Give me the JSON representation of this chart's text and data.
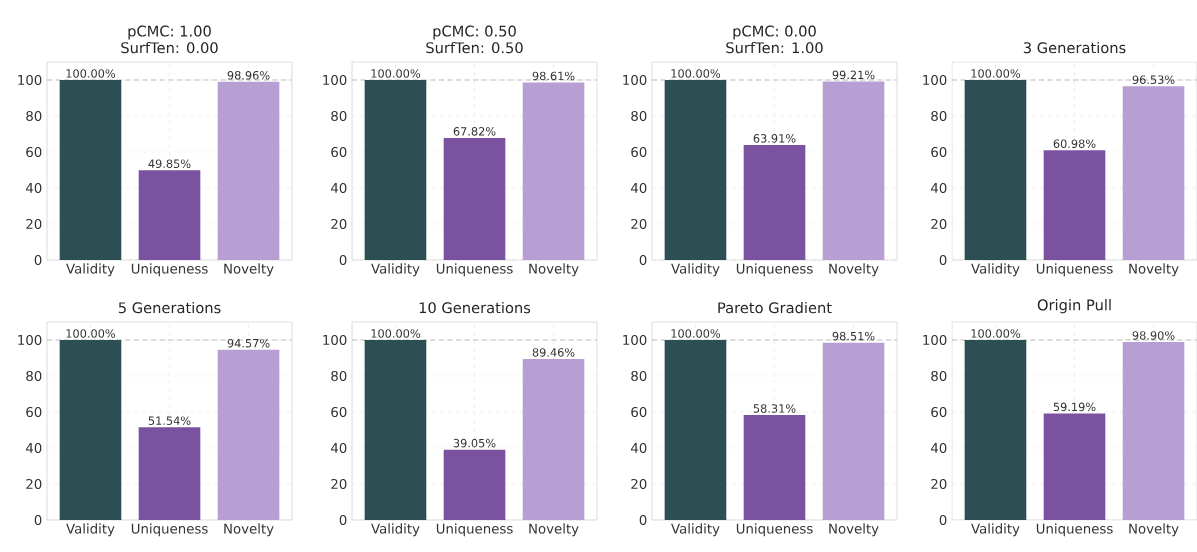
{
  "chart_data": [
    {
      "type": "bar",
      "title": "pCMC: 1.00",
      "subtitle": "SurfTen: 0.00",
      "categories": [
        "Validity",
        "Uniqueness",
        "Novelty"
      ],
      "values": [
        100,
        49.85,
        98.96
      ],
      "colors": [
        "#2d4e52",
        "#7b52a0",
        "#b89fd3"
      ],
      "value_labels": [
        "100.00%",
        "49.85%",
        "98.96%"
      ],
      "ylim": [
        0,
        110
      ],
      "yticks": [
        0,
        20,
        40,
        60,
        80,
        100
      ],
      "grid": true,
      "ref_lines": [
        {
          "axis": "y",
          "value": 100,
          "color": "#c0c0c0",
          "line_style": "dashed"
        }
      ]
    },
    {
      "type": "bar",
      "title": "pCMC: 0.50",
      "subtitle": "SurfTen: 0.50",
      "categories": [
        "Validity",
        "Uniqueness",
        "Novelty"
      ],
      "values": [
        100,
        67.82,
        98.61
      ],
      "colors": [
        "#2d4e52",
        "#7b52a0",
        "#b89fd3"
      ],
      "value_labels": [
        "100.00%",
        "67.82%",
        "98.61%"
      ],
      "ylim": [
        0,
        110
      ],
      "yticks": [
        0,
        20,
        40,
        60,
        80,
        100
      ],
      "grid": true,
      "ref_lines": [
        {
          "axis": "y",
          "value": 100,
          "color": "#c0c0c0",
          "line_style": "dashed"
        }
      ]
    },
    {
      "type": "bar",
      "title": "pCMC: 0.00",
      "subtitle": "SurfTen: 1.00",
      "categories": [
        "Validity",
        "Uniqueness",
        "Novelty"
      ],
      "values": [
        100,
        63.91,
        99.21
      ],
      "colors": [
        "#2d4e52",
        "#7b52a0",
        "#b89fd3"
      ],
      "value_labels": [
        "100.00%",
        "63.91%",
        "99.21%"
      ],
      "ylim": [
        0,
        110
      ],
      "yticks": [
        0,
        20,
        40,
        60,
        80,
        100
      ],
      "grid": true,
      "ref_lines": [
        {
          "axis": "y",
          "value": 100,
          "color": "#c0c0c0",
          "line_style": "dashed"
        }
      ]
    },
    {
      "type": "bar",
      "title": "3 Generations",
      "categories": [
        "Validity",
        "Uniqueness",
        "Novelty"
      ],
      "values": [
        100,
        60.98,
        96.53
      ],
      "colors": [
        "#2d4e52",
        "#7b52a0",
        "#b89fd3"
      ],
      "value_labels": [
        "100.00%",
        "60.98%",
        "96.53%"
      ],
      "ylim": [
        0,
        110
      ],
      "yticks": [
        0,
        20,
        40,
        60,
        80,
        100
      ],
      "grid": true,
      "ref_lines": [
        {
          "axis": "y",
          "value": 100,
          "color": "#c0c0c0",
          "line_style": "dashed"
        }
      ]
    },
    {
      "type": "bar",
      "title": "5 Generations",
      "categories": [
        "Validity",
        "Uniqueness",
        "Novelty"
      ],
      "values": [
        100,
        51.54,
        94.57
      ],
      "colors": [
        "#2d4e52",
        "#7b52a0",
        "#b89fd3"
      ],
      "value_labels": [
        "100.00%",
        "51.54%",
        "94.57%"
      ],
      "ylim": [
        0,
        110
      ],
      "yticks": [
        0,
        20,
        40,
        60,
        80,
        100
      ],
      "grid": true,
      "ref_lines": [
        {
          "axis": "y",
          "value": 100,
          "color": "#c0c0c0",
          "line_style": "dashed"
        }
      ]
    },
    {
      "type": "bar",
      "title": "10 Generations",
      "categories": [
        "Validity",
        "Uniqueness",
        "Novelty"
      ],
      "values": [
        100,
        39.05,
        89.46
      ],
      "colors": [
        "#2d4e52",
        "#7b52a0",
        "#b89fd3"
      ],
      "value_labels": [
        "100.00%",
        "39.05%",
        "89.46%"
      ],
      "ylim": [
        0,
        110
      ],
      "yticks": [
        0,
        20,
        40,
        60,
        80,
        100
      ],
      "grid": true,
      "ref_lines": [
        {
          "axis": "y",
          "value": 100,
          "color": "#c0c0c0",
          "line_style": "dashed"
        }
      ]
    },
    {
      "type": "bar",
      "title": "Pareto Gradient",
      "categories": [
        "Validity",
        "Uniqueness",
        "Novelty"
      ],
      "values": [
        100,
        58.31,
        98.51
      ],
      "colors": [
        "#2d4e52",
        "#7b52a0",
        "#b89fd3"
      ],
      "value_labels": [
        "100.00%",
        "58.31%",
        "98.51%"
      ],
      "ylim": [
        0,
        110
      ],
      "yticks": [
        0,
        20,
        40,
        60,
        80,
        100
      ],
      "grid": true,
      "ref_lines": [
        {
          "axis": "y",
          "value": 100,
          "color": "#c0c0c0",
          "line_style": "dashed"
        }
      ]
    },
    {
      "type": "bar",
      "title": "Origin Pull",
      "categories": [
        "Validity",
        "Uniqueness",
        "Novelty"
      ],
      "values": [
        100,
        59.19,
        98.9
      ],
      "colors": [
        "#2d4e52",
        "#7b52a0",
        "#b89fd3"
      ],
      "value_labels": [
        "100.00%",
        "59.19%",
        "98.90%"
      ],
      "ylim": [
        0,
        110
      ],
      "yticks": [
        0,
        20,
        40,
        60,
        80,
        100
      ],
      "grid": true,
      "ref_lines": [
        {
          "axis": "y",
          "value": 100,
          "color": "#c0c0c0",
          "line_style": "dashed"
        }
      ]
    }
  ]
}
